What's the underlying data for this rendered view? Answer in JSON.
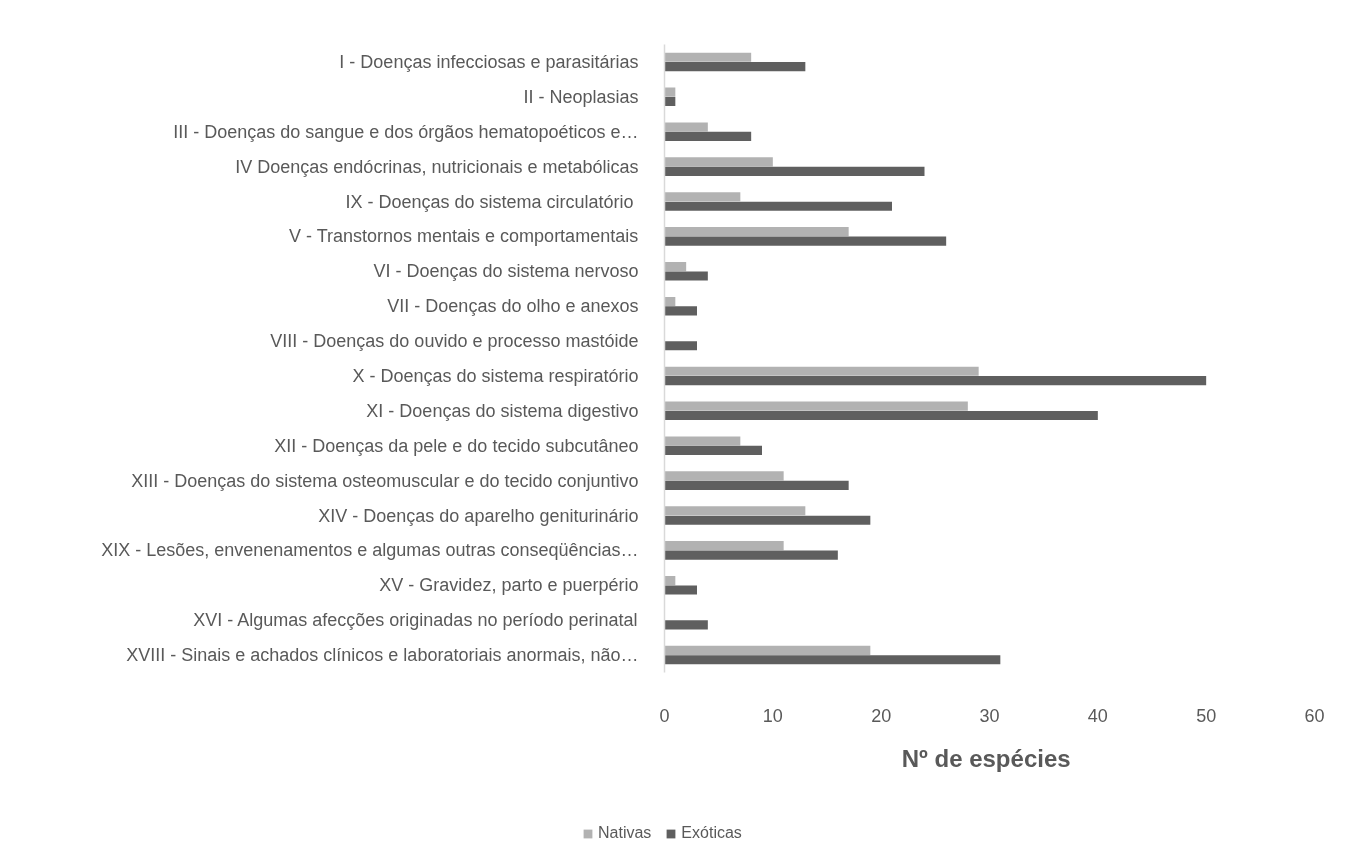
{
  "chart_data": {
    "type": "bar",
    "orientation": "horizontal",
    "categories": [
      "I - Doenças infecciosas e parasitárias",
      "II - Neoplasias",
      "III - Doenças do sangue e dos órgãos hematopoéticos e…",
      "IV Doenças endócrinas, nutricionais e metabólicas",
      "IX - Doenças  do sistema circulatório",
      "V - Transtornos mentais e comportamentais",
      "VI - Doenças do sistema nervoso",
      "VII - Doenças do olho e anexos",
      "VIII - Doenças do ouvido e processo mastóide",
      "X - Doenças do sistema respiratório",
      "XI - Doenças do sistema digestivo",
      "XII - Doenças da pele e do tecido subcutâneo",
      "XIII - Doenças do sistema osteomuscular e do tecido conjuntivo",
      "XIV - Doenças do aparelho geniturinário",
      "XIX - Lesões, envenenamentos e algumas outras conseqüências…",
      "XV - Gravidez, parto e puerpério",
      "XVI - Algumas afecções originadas no período perinatal",
      "XVIII - Sinais e achados clínicos e laboratoriais anormais, não…"
    ],
    "series": [
      {
        "name": "Nativas",
        "color": "#b2b2b2",
        "values": [
          8,
          1,
          4,
          10,
          7,
          17,
          2,
          1,
          0,
          29,
          28,
          7,
          11,
          13,
          11,
          1,
          0,
          19
        ]
      },
      {
        "name": "Exóticas",
        "color": "#5f5f5f",
        "values": [
          13,
          1,
          8,
          24,
          21,
          26,
          4,
          3,
          3,
          50,
          40,
          9,
          17,
          19,
          16,
          3,
          4,
          31
        ]
      }
    ],
    "xlabel": "Nº  de espécies",
    "xlim": [
      0,
      60
    ],
    "xticks": [
      0,
      10,
      20,
      30,
      40,
      50,
      60
    ],
    "legend": "bottom"
  }
}
